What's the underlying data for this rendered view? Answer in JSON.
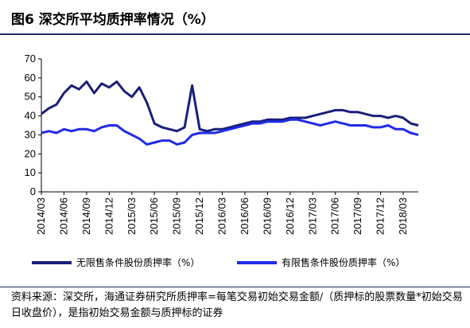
{
  "figure": {
    "title": "图6  深交所平均质押率情况（%）",
    "source": "资料来源：深交所，海通证券研究所质押率=每笔交易初始交易金额/（质押标的股票数量*初始交易日收盘价），是指初始交易金额与质押标的证券"
  },
  "colors": {
    "unrestricted": "#1a1f7a",
    "restricted": "#1f2be6",
    "axis": "#000000",
    "rule": "#1a2b66"
  },
  "chart_data": {
    "type": "line",
    "title": "",
    "xlabel": "",
    "ylabel": "",
    "ylim": [
      0,
      70
    ],
    "yticks": [
      0,
      10,
      20,
      30,
      40,
      50,
      60,
      70
    ],
    "grid": false,
    "legend_position": "bottom",
    "x_tick_labels": [
      "2014/03",
      "2014/06",
      "2014/09",
      "2014/12",
      "2015/03",
      "2015/06",
      "2015/09",
      "2015/12",
      "2016/03",
      "2016/06",
      "2016/09",
      "2016/12",
      "2017/03",
      "2017/06",
      "2017/09",
      "2017/12",
      "2018/03"
    ],
    "x": [
      "2014/03",
      "2014/04",
      "2014/05",
      "2014/06",
      "2014/07",
      "2014/08",
      "2014/09",
      "2014/10",
      "2014/11",
      "2014/12",
      "2015/01",
      "2015/02",
      "2015/03",
      "2015/04",
      "2015/05",
      "2015/06",
      "2015/07",
      "2015/08",
      "2015/09",
      "2015/10",
      "2015/11",
      "2015/12",
      "2016/01",
      "2016/02",
      "2016/03",
      "2016/04",
      "2016/05",
      "2016/06",
      "2016/07",
      "2016/08",
      "2016/09",
      "2016/10",
      "2016/11",
      "2016/12",
      "2017/01",
      "2017/02",
      "2017/03",
      "2017/04",
      "2017/05",
      "2017/06",
      "2017/07",
      "2017/08",
      "2017/09",
      "2017/10",
      "2017/11",
      "2017/12",
      "2018/01",
      "2018/02",
      "2018/03",
      "2018/04",
      "2018/05"
    ],
    "series": [
      {
        "name": "无限售条件股份质押率（%）",
        "color": "#1a1f7a",
        "values": [
          41,
          44,
          46,
          52,
          56,
          54,
          58,
          52,
          57,
          55,
          58,
          53,
          50,
          55,
          47,
          36,
          34,
          33,
          32,
          34,
          56,
          33,
          32,
          33,
          33,
          34,
          35,
          36,
          37,
          37,
          38,
          38,
          38,
          39,
          39,
          39,
          40,
          41,
          42,
          43,
          43,
          42,
          42,
          41,
          40,
          40,
          39,
          40,
          39,
          36,
          35
        ]
      },
      {
        "name": "有限售条件股份质押率（%）",
        "color": "#1f2be6",
        "values": [
          31,
          32,
          31,
          33,
          32,
          33,
          33,
          32,
          34,
          35,
          35,
          32,
          30,
          28,
          25,
          26,
          27,
          27,
          25,
          26,
          30,
          31,
          31,
          31,
          32,
          33,
          34,
          35,
          36,
          36,
          37,
          37,
          37,
          38,
          38,
          37,
          36,
          35,
          36,
          37,
          36,
          35,
          35,
          35,
          34,
          34,
          35,
          33,
          33,
          31,
          30
        ]
      }
    ]
  }
}
